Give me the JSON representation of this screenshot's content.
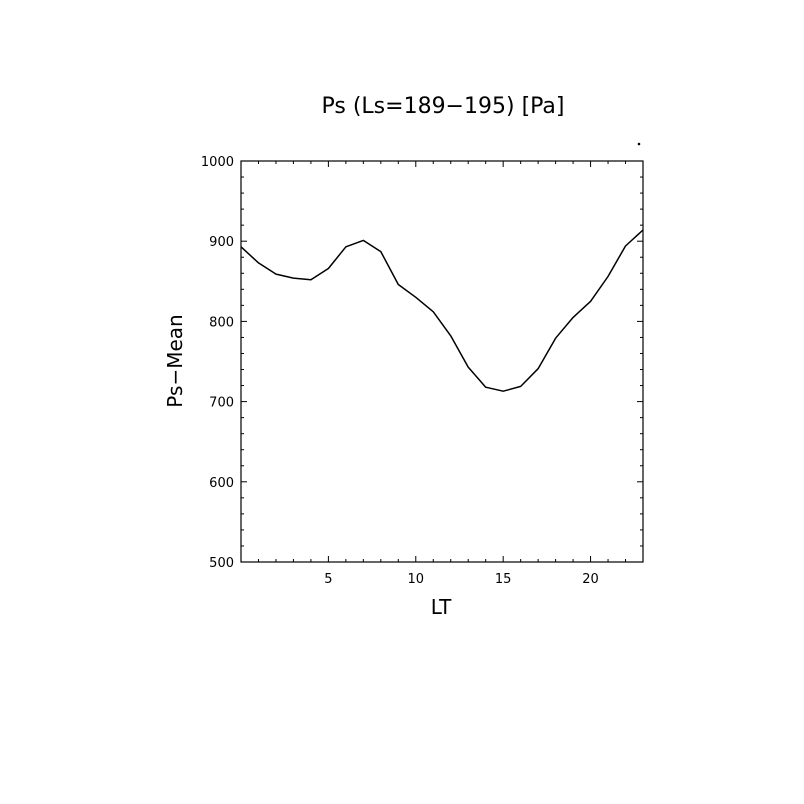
{
  "chart_data": {
    "type": "line",
    "title": "Ps (Ls=189−195) [Pa]",
    "xlabel": "LT",
    "ylabel": "Ps−Mean",
    "xlim": [
      0,
      23
    ],
    "ylim": [
      500,
      1000
    ],
    "x_ticks": [
      5,
      10,
      15,
      20
    ],
    "x_tick_labels": [
      "5",
      "10",
      "15",
      "20"
    ],
    "y_ticks": [
      500,
      600,
      700,
      800,
      900,
      1000
    ],
    "y_tick_labels": [
      "500",
      "600",
      "700",
      "800",
      "900",
      "1000"
    ],
    "grid": false,
    "series": [
      {
        "x": [
          0,
          1,
          2,
          3,
          4,
          5,
          6,
          7,
          8,
          9,
          10,
          11,
          12,
          13,
          14,
          15,
          16,
          17,
          18,
          19,
          20,
          21,
          22,
          23
        ],
        "values": [
          893,
          873,
          859,
          854,
          852,
          866,
          893,
          901,
          887,
          846,
          830,
          812,
          782,
          743,
          718,
          713,
          719,
          741,
          779,
          805,
          825,
          856,
          894,
          914
        ]
      }
    ]
  }
}
